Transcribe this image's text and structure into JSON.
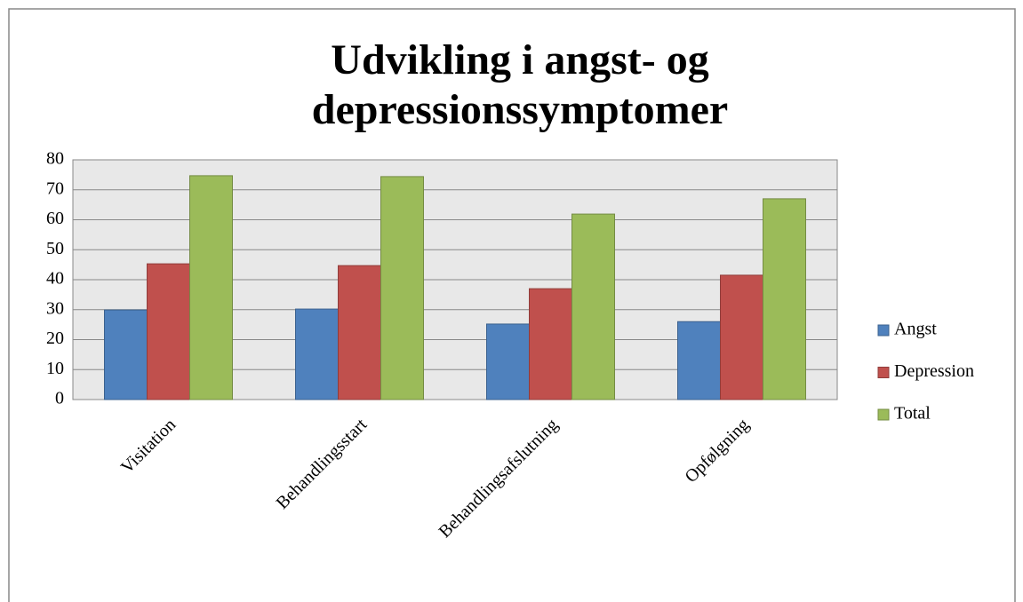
{
  "chart_data": {
    "type": "bar",
    "title": [
      "Udvikling i angst- og",
      "depressionssymptomer"
    ],
    "categories": [
      "Visitation",
      "Behandlingsstart",
      "Behandlingsafslutning",
      "Opfølgning"
    ],
    "series": [
      {
        "name": "Angst",
        "color": "#4f81bd",
        "values": [
          29.9,
          30.2,
          25.2,
          26
        ]
      },
      {
        "name": "Depression",
        "color": "#c0504d",
        "values": [
          45.3,
          44.7,
          37,
          41.5
        ]
      },
      {
        "name": "Total",
        "color": "#9bbb59",
        "values": [
          74.7,
          74.4,
          61.9,
          67
        ]
      }
    ],
    "ylim": [
      0,
      80
    ],
    "yticks": [
      0,
      10,
      20,
      30,
      40,
      50,
      60,
      70,
      80
    ],
    "grid": true,
    "legend": "right"
  }
}
